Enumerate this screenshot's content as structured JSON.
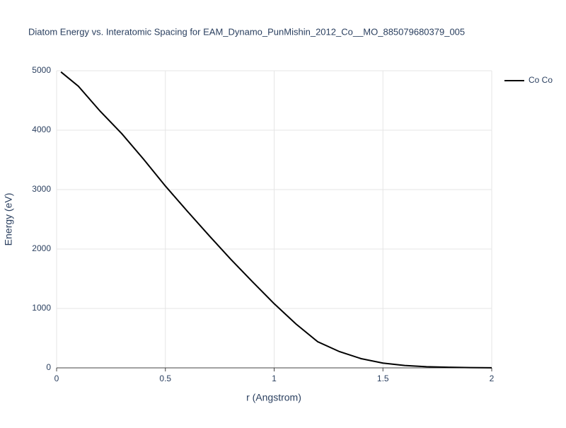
{
  "chart_data": {
    "type": "line",
    "title": "Diatom Energy vs. Interatomic Spacing for EAM_Dynamo_PunMishin_2012_Co__MO_885079680379_005",
    "x_label": "r (Angstrom)",
    "y_label": "Energy (eV)",
    "x": [
      0.02,
      0.1,
      0.2,
      0.3,
      0.4,
      0.5,
      0.6,
      0.7,
      0.8,
      0.9,
      1.0,
      1.1,
      1.2,
      1.3,
      1.4,
      1.5,
      1.6,
      1.7,
      1.8,
      1.9,
      2.0
    ],
    "series": [
      {
        "name": "Co Co",
        "color": "#000000",
        "values": [
          4980,
          4740,
          4320,
          3940,
          3510,
          3060,
          2640,
          2230,
          1830,
          1450,
          1080,
          740,
          440,
          274,
          155,
          80,
          40,
          20,
          10,
          5,
          2
        ]
      }
    ],
    "xlim": [
      0,
      2
    ],
    "xticks": [
      0,
      0.5,
      1,
      1.5,
      2
    ],
    "ylim": [
      0,
      5000
    ],
    "yticks": [
      0,
      1000,
      2000,
      3000,
      4000,
      5000
    ],
    "grid": true,
    "legend": "top-right"
  }
}
